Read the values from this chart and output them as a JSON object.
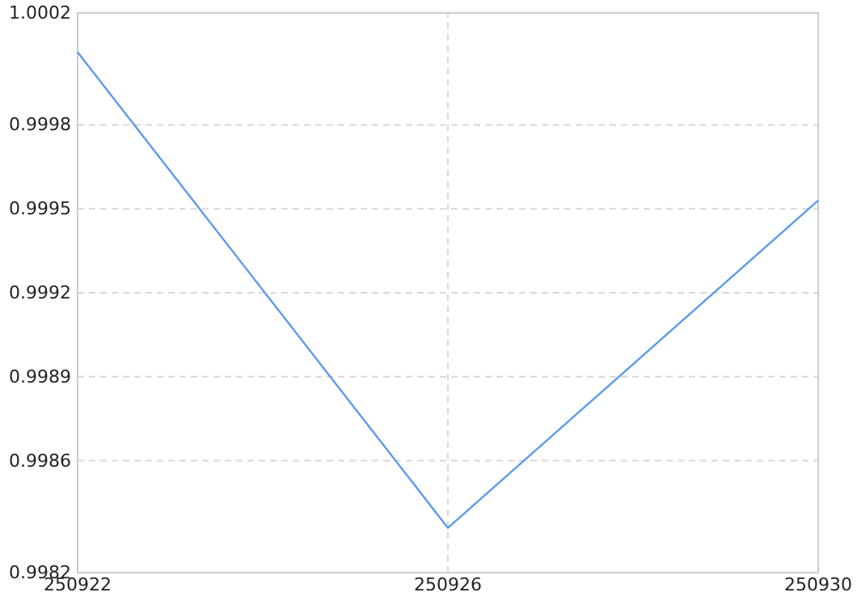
{
  "chart_data": {
    "type": "line",
    "categories": [
      "250922",
      "250926",
      "250930"
    ],
    "series": [
      {
        "color": "#5b9bea",
        "values": [
          1.00006,
          0.99836,
          0.99953
        ]
      }
    ],
    "ylim": [
      0.9982,
      1.0002
    ],
    "yticks": [
      0.9982,
      0.9986,
      0.9989,
      0.9992,
      0.9995,
      0.9998,
      1.0002
    ],
    "grid": true,
    "marker": "none",
    "line_style": "solid"
  }
}
